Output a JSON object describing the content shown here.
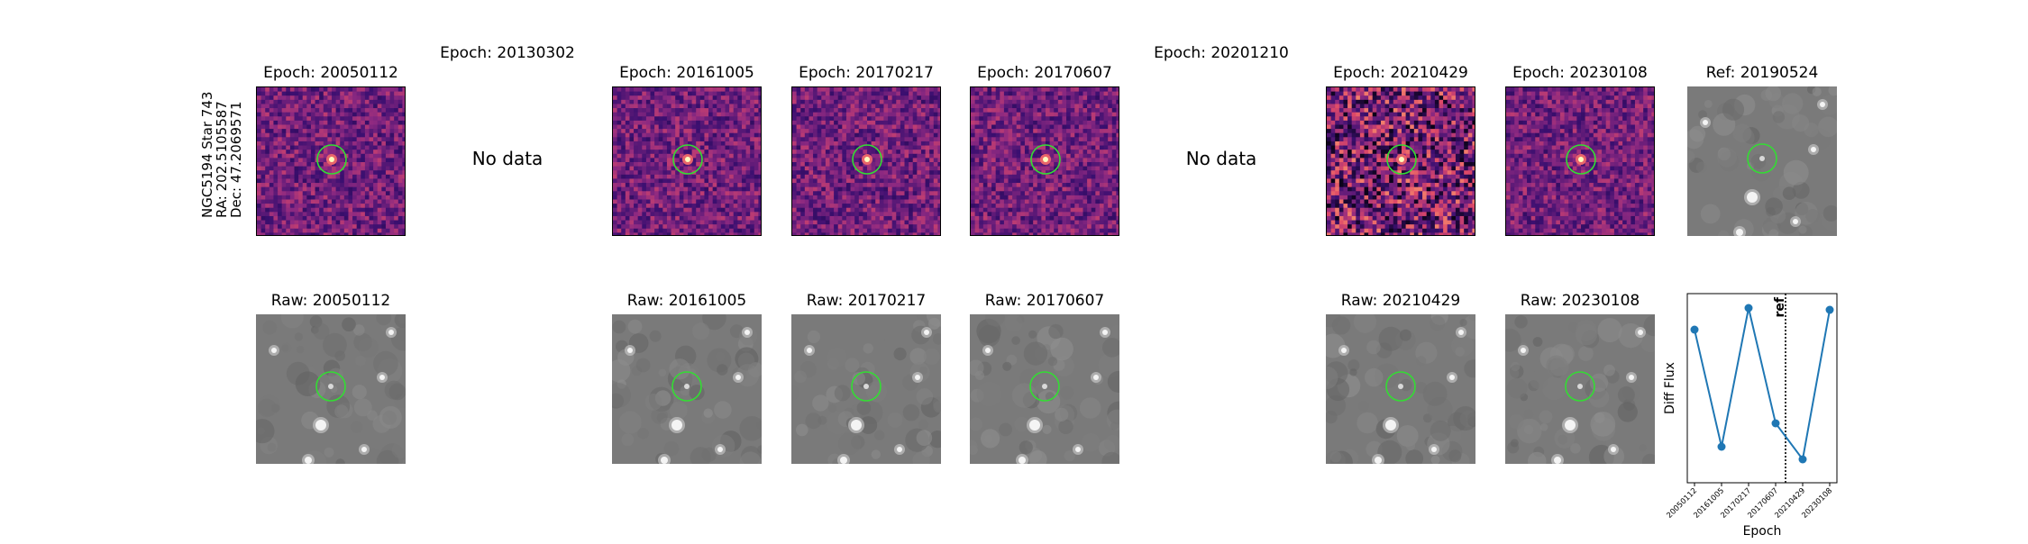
{
  "star": {
    "line1": "NGC5194 Star 743",
    "line2": "RA: 202.5105587",
    "line3": "Dec: 47.2069571"
  },
  "no_data_label": "No data",
  "diff_epochs": [
    {
      "label": "Epoch: 20050112",
      "has_data": true
    },
    {
      "label": "Epoch: 20130302",
      "has_data": false
    },
    {
      "label": "Epoch: 20161005",
      "has_data": true
    },
    {
      "label": "Epoch: 20170217",
      "has_data": true
    },
    {
      "label": "Epoch: 20170607",
      "has_data": true
    },
    {
      "label": "Epoch: 20201210",
      "has_data": false
    },
    {
      "label": "Epoch: 20210429",
      "has_data": true
    },
    {
      "label": "Epoch: 20230108",
      "has_data": true
    }
  ],
  "ref": {
    "label": "Ref: 20190524"
  },
  "raw_epochs": [
    {
      "label": "Raw: 20050112"
    },
    {
      "label": "Raw: 20161005"
    },
    {
      "label": "Raw: 20170217"
    },
    {
      "label": "Raw: 20170607"
    },
    {
      "label": "Raw: 20210429"
    },
    {
      "label": "Raw: 20230108"
    }
  ],
  "colors": {
    "circle": "#33dd33",
    "series": "#1f77b4",
    "magma_dark": "#3b0f70",
    "magma_mid": "#8c2981",
    "magma_bright": "#fcfdbf"
  },
  "chart_data": {
    "type": "line",
    "xlabel": "Epoch",
    "ylabel": "Diff Flux",
    "x": [
      "20050112",
      "20161005",
      "20170217",
      "20170607",
      "20210429",
      "20230108"
    ],
    "y": [
      0.85,
      0.2,
      0.97,
      0.33,
      0.13,
      0.96
    ],
    "ref_line": {
      "label": "ref",
      "position": "between 20170607 and 20210429",
      "style": "dotted"
    },
    "grid": false,
    "legend": "none"
  }
}
